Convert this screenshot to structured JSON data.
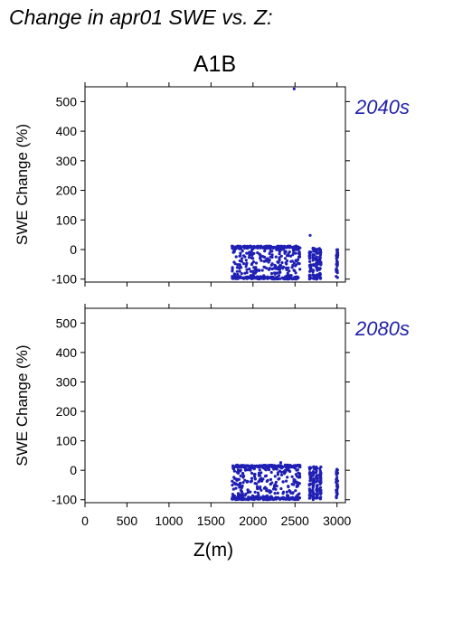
{
  "title": "Change in apr01 SWE vs. Z:",
  "scenario": "A1B",
  "colors": {
    "points": "#1f1fb4",
    "period_label": "#2222aa"
  },
  "chart_data": [
    {
      "type": "scatter",
      "period": "2040s",
      "ylabel": "SWE Change (%)",
      "xlabel": "",
      "xlim": [
        0,
        3100
      ],
      "ylim": [
        -110,
        550
      ],
      "yticks": [
        -100,
        0,
        100,
        200,
        300,
        400,
        500
      ],
      "xticks": [
        0,
        500,
        1000,
        1500,
        2000,
        2500,
        3000
      ],
      "show_xtick_labels": false,
      "grid": false,
      "clusters": [
        {
          "x_range": [
            1750,
            2560
          ],
          "y_range": [
            -100,
            12
          ],
          "density": "dense"
        },
        {
          "x_range": [
            2640,
            2820
          ],
          "y_range": [
            -100,
            5
          ],
          "density": "columns"
        },
        {
          "x_range": [
            2990,
            3010
          ],
          "y_range": [
            -100,
            5
          ],
          "density": "column"
        }
      ],
      "outliers": [
        {
          "x": 2490,
          "y": 543
        },
        {
          "x": 2680,
          "y": 48
        }
      ]
    },
    {
      "type": "scatter",
      "period": "2080s",
      "ylabel": "SWE Change (%)",
      "xlabel": "Z(m)",
      "xlim": [
        0,
        3100
      ],
      "ylim": [
        -110,
        550
      ],
      "yticks": [
        -100,
        0,
        100,
        200,
        300,
        400,
        500
      ],
      "xticks": [
        0,
        500,
        1000,
        1500,
        2000,
        2500,
        3000
      ],
      "show_xtick_labels": true,
      "grid": false,
      "clusters": [
        {
          "x_range": [
            1750,
            2560
          ],
          "y_range": [
            -100,
            18
          ],
          "density": "dense"
        },
        {
          "x_range": [
            2640,
            2820
          ],
          "y_range": [
            -100,
            12
          ],
          "density": "columns"
        },
        {
          "x_range": [
            2990,
            3010
          ],
          "y_range": [
            -100,
            5
          ],
          "density": "column"
        }
      ],
      "outliers": [
        {
          "x": 2330,
          "y": 26
        }
      ]
    }
  ]
}
